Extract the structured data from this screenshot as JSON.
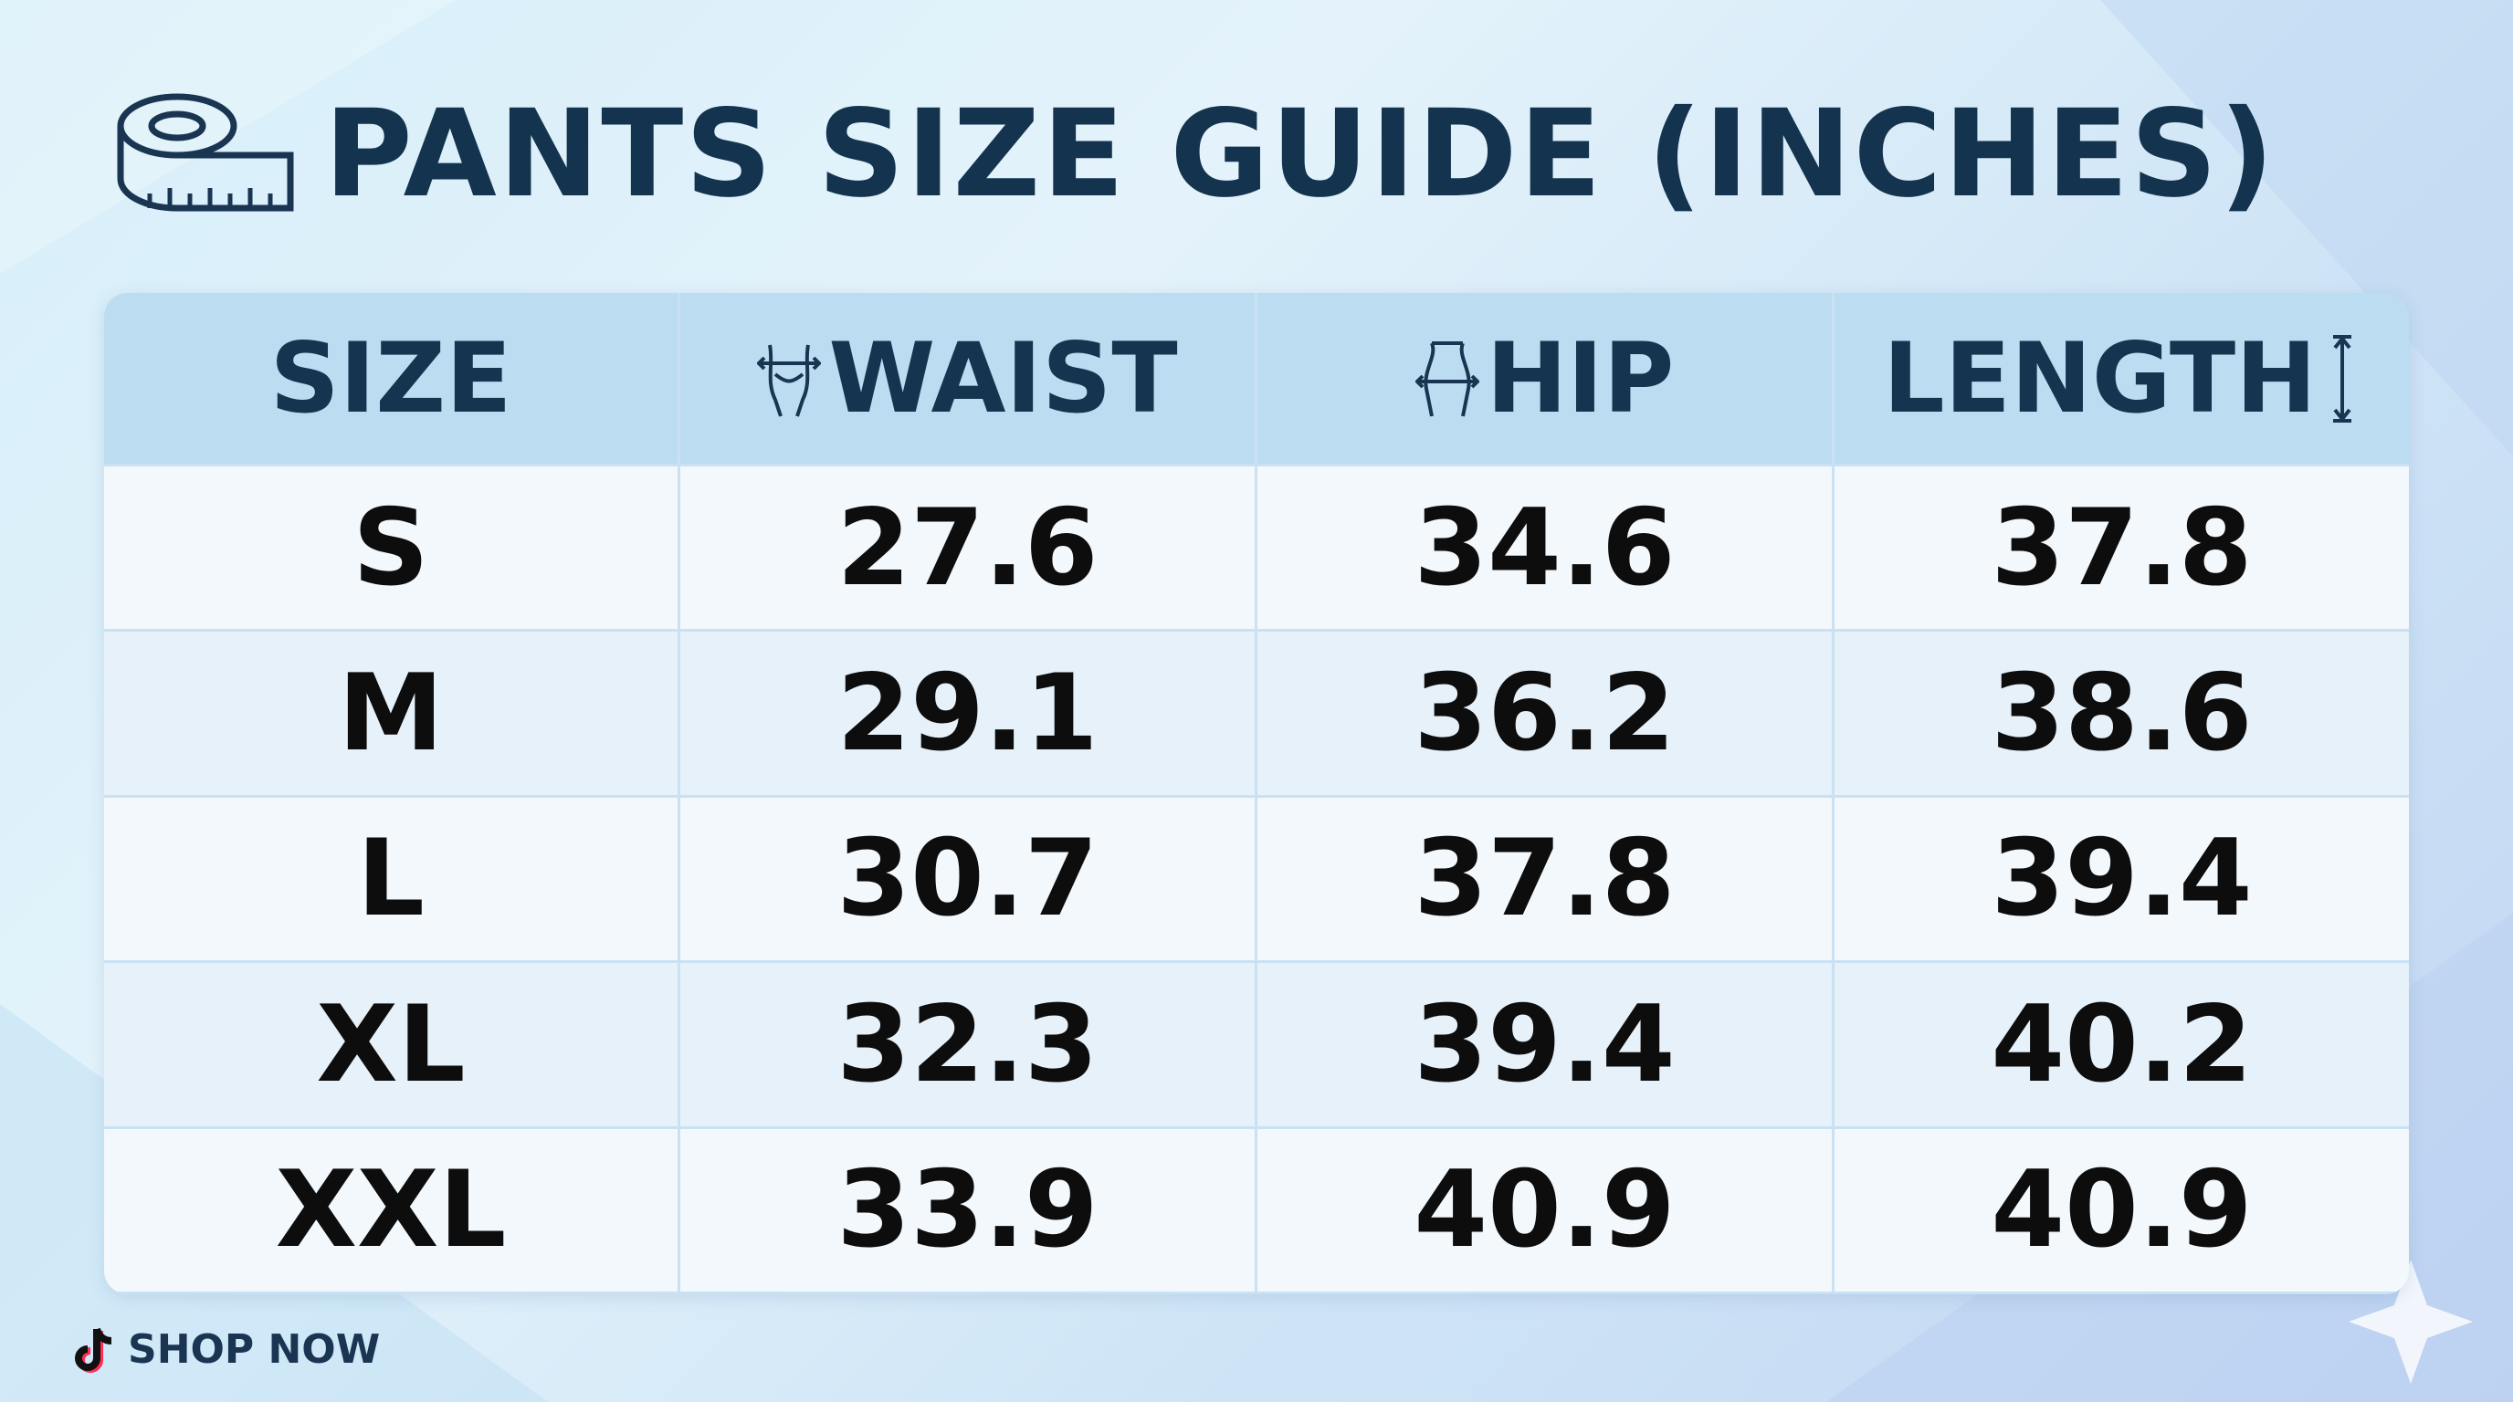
{
  "header": {
    "title": "PANTS SIZE GUIDE (INCHES)"
  },
  "table": {
    "columns": [
      "SIZE",
      "WAIST",
      "HIP",
      "LENGTH"
    ],
    "rows": [
      [
        "S",
        "27.6",
        "34.6",
        "37.8"
      ],
      [
        "M",
        "29.1",
        "36.2",
        "38.6"
      ],
      [
        "L",
        "30.7",
        "37.8",
        "39.4"
      ],
      [
        "XL",
        "32.3",
        "39.4",
        "40.2"
      ],
      [
        "XXL",
        "33.9",
        "40.9",
        "40.9"
      ]
    ]
  },
  "footer": {
    "button": "SHOP NOW"
  }
}
